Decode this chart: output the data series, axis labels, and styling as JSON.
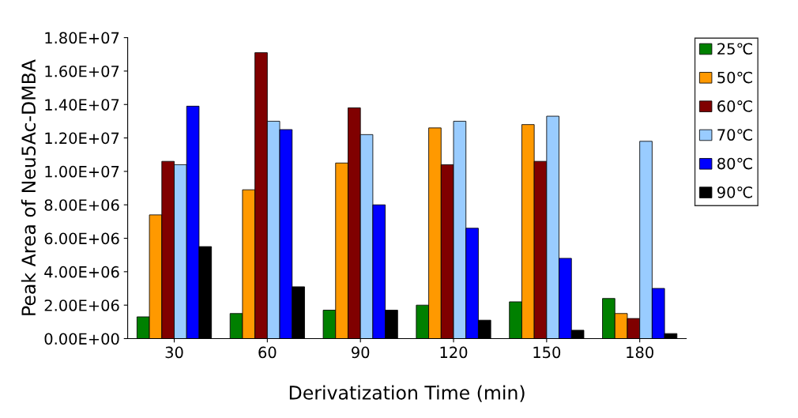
{
  "chart_data": {
    "type": "bar",
    "xlabel": "Derivatization Time (min)",
    "ylabel": "Peak Area of Neu5Ac-DMBA",
    "categories": [
      "30",
      "60",
      "90",
      "120",
      "150",
      "180"
    ],
    "series": [
      {
        "name": "25℃",
        "color": "#008000",
        "values": [
          1300000,
          1500000,
          1700000,
          2000000,
          2200000,
          2400000
        ]
      },
      {
        "name": "50℃",
        "color": "#ff9900",
        "values": [
          7400000,
          8900000,
          10500000,
          12600000,
          12800000,
          1500000
        ]
      },
      {
        "name": "60℃",
        "color": "#800000",
        "values": [
          10600000,
          17100000,
          13800000,
          10400000,
          10600000,
          1200000
        ]
      },
      {
        "name": "70℃",
        "color": "#99ccff",
        "values": [
          10400000,
          13000000,
          12200000,
          13000000,
          13300000,
          11800000
        ]
      },
      {
        "name": "80℃",
        "color": "#0000ff",
        "values": [
          13900000,
          12500000,
          8000000,
          6600000,
          4800000,
          3000000
        ]
      },
      {
        "name": "90℃",
        "color": "#000000",
        "values": [
          5500000,
          3100000,
          1700000,
          1100000,
          500000,
          300000
        ]
      }
    ],
    "ylim": [
      0,
      18000000
    ],
    "yticks": [
      {
        "value": 0,
        "label": "0.00E+00"
      },
      {
        "value": 2000000,
        "label": "2.00E+06"
      },
      {
        "value": 4000000,
        "label": "4.00E+06"
      },
      {
        "value": 6000000,
        "label": "6.00E+06"
      },
      {
        "value": 8000000,
        "label": "8.00E+06"
      },
      {
        "value": 10000000,
        "label": "1.00E+07"
      },
      {
        "value": 12000000,
        "label": "1.20E+07"
      },
      {
        "value": 14000000,
        "label": "1.40E+07"
      },
      {
        "value": 16000000,
        "label": "1.60E+07"
      },
      {
        "value": 18000000,
        "label": "1.80E+07"
      }
    ],
    "grid": false,
    "legend": "right"
  }
}
